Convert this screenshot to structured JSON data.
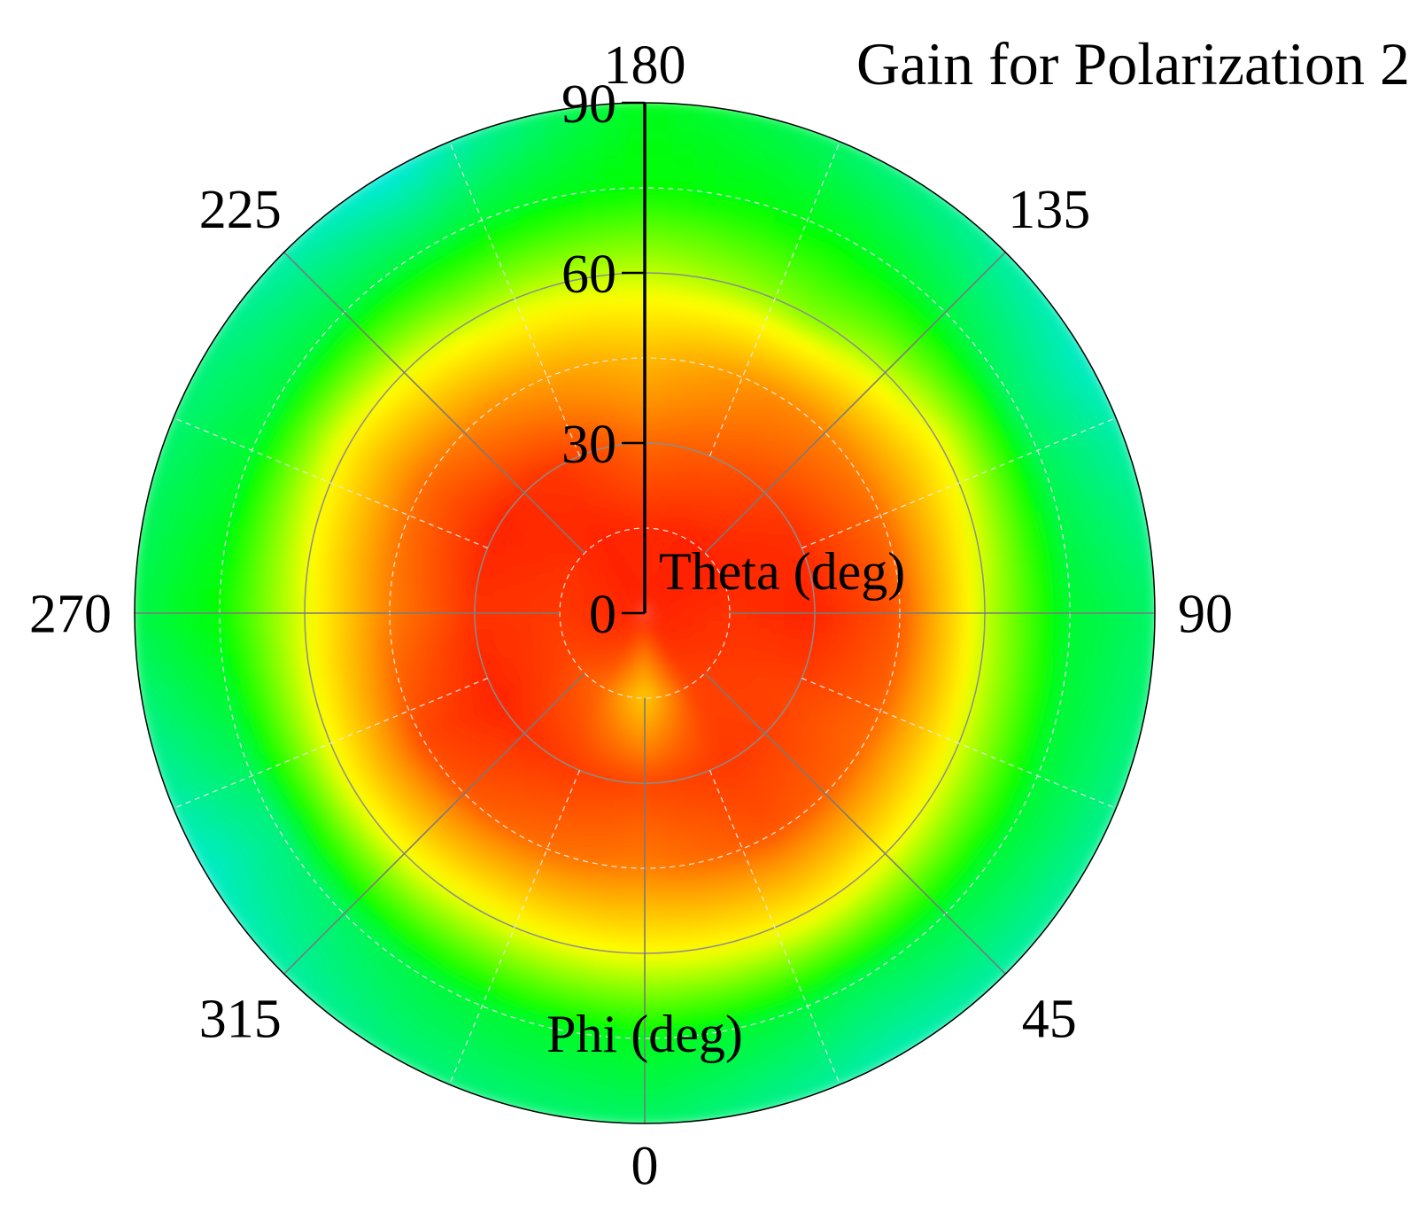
{
  "chart_data": {
    "type": "heatmap",
    "projection": "polar",
    "title": "Gain for Polarization 2",
    "radial_axis_label": "Theta (deg)",
    "angular_axis_label": "Phi (deg)",
    "radial_range": [
      0,
      90
    ],
    "radial_ticks": [
      "0",
      "30",
      "60",
      "90"
    ],
    "angular_ticks": [
      {
        "phi": 0,
        "label": "0"
      },
      {
        "phi": 45,
        "label": "45"
      },
      {
        "phi": 90,
        "label": "90"
      },
      {
        "phi": 135,
        "label": "135"
      },
      {
        "phi": 180,
        "label": "180"
      },
      {
        "phi": 225,
        "label": "225"
      },
      {
        "phi": 270,
        "label": "270"
      },
      {
        "phi": 315,
        "label": "315"
      }
    ],
    "angular_orientation": "phi 0 at bottom, increasing counter-clockwise (90 at right, 180 at top, 270 at left)",
    "grid": true,
    "colorbar": false,
    "colormap": [
      "#1e78ff",
      "#00e5ff",
      "#00ff00",
      "#ffff00",
      "#ff8c00",
      "#ff0000"
    ],
    "phi_grid": [
      0,
      30,
      60,
      90,
      120,
      150,
      180,
      210,
      240,
      270,
      300,
      330
    ],
    "theta_grid": [
      0,
      15,
      30,
      45,
      60,
      75,
      90
    ],
    "value_scale": "relative gain level, 0 = blue (low) to 1 = red (high)",
    "relative_gain": [
      [
        0.95,
        0.95,
        0.95,
        0.95,
        0.95,
        0.95,
        0.95,
        0.95,
        0.95,
        0.95,
        0.95,
        0.95
      ],
      [
        0.68,
        0.9,
        0.92,
        0.93,
        0.95,
        0.95,
        0.94,
        0.95,
        0.93,
        0.92,
        0.9,
        0.85
      ],
      [
        0.9,
        0.92,
        0.9,
        0.95,
        0.93,
        0.88,
        0.85,
        0.92,
        0.95,
        0.93,
        0.95,
        0.92
      ],
      [
        0.82,
        0.88,
        0.85,
        0.88,
        0.83,
        0.8,
        0.72,
        0.78,
        0.85,
        0.82,
        0.9,
        0.85
      ],
      [
        0.6,
        0.62,
        0.58,
        0.55,
        0.6,
        0.5,
        0.55,
        0.55,
        0.62,
        0.58,
        0.6,
        0.58
      ],
      [
        0.38,
        0.34,
        0.36,
        0.36,
        0.32,
        0.38,
        0.4,
        0.35,
        0.35,
        0.4,
        0.3,
        0.35
      ],
      [
        0.32,
        0.26,
        0.28,
        0.32,
        0.24,
        0.3,
        0.38,
        0.22,
        0.3,
        0.34,
        0.24,
        0.3
      ]
    ]
  }
}
